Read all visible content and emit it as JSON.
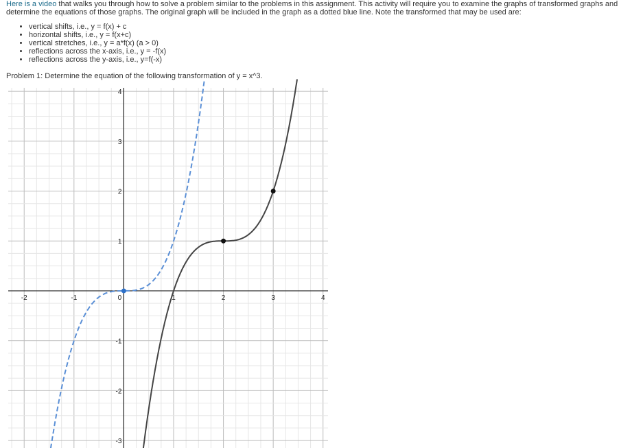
{
  "intro": {
    "link": "Here is a video",
    "text": " that walks you through how to solve a problem similar to the problems in this assignment. This activity will require you to examine the graphs of transformed graphs and determine the equations of those graphs. The original graph will be included in the graph as a dotted blue line. Note the transformed that may be used are:"
  },
  "transforms": [
    "vertical shifts, i.e., y = f(x) + c",
    "horizontal shifts, i.e., y = f(x+c)",
    "vertical stretches, i.e., y  = a*f(x) (a > 0)",
    "reflections across the x-axis, i.e., y = -f(x)",
    "reflections across the y-axis, i.e., y=f(-x)"
  ],
  "problem": "Problem 1: Determine the equation of the following transformation of y = x^3.",
  "chart_data": {
    "type": "line",
    "xlim": [
      -2.32,
      4.1
    ],
    "ylim": [
      -3.15,
      4.07
    ],
    "x_ticks": [
      "-2",
      "-1",
      "0",
      "1",
      "2",
      "3",
      "4"
    ],
    "y_ticks": [
      "-3",
      "-2",
      "-1",
      "1",
      "2",
      "3",
      "4"
    ],
    "grid": true,
    "minor_grid_step": 0.25,
    "series": [
      {
        "function": "x^3",
        "style": "dashed",
        "color": "#5a8fd6",
        "points": [
          [
            0,
            0
          ]
        ]
      },
      {
        "function": "(x-2)^3+1",
        "style": "solid",
        "color": "#444444",
        "points": [
          [
            2,
            1
          ],
          [
            3,
            2
          ]
        ]
      }
    ]
  }
}
